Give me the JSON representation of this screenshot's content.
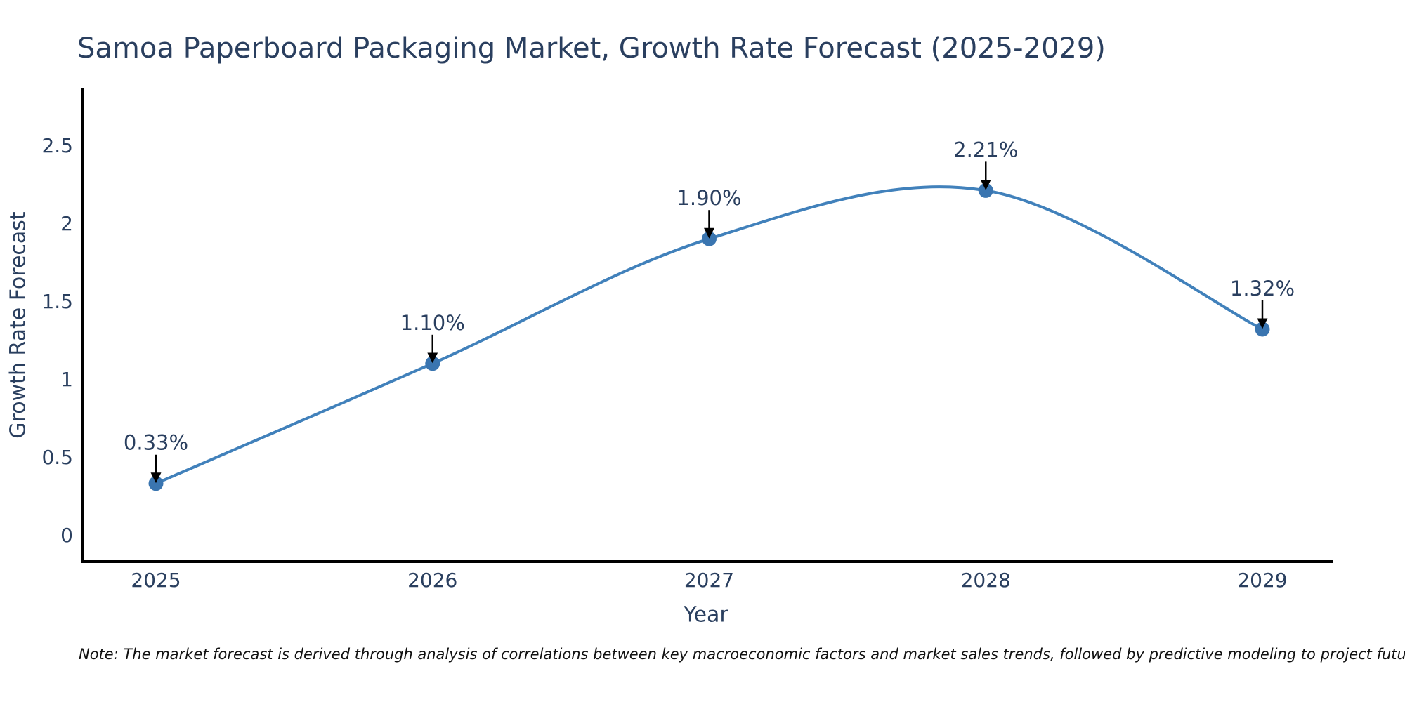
{
  "note": "Note: The market forecast is derived through analysis of correlations between key macroeconomic factors and market sales trends, followed by predictive modeling to project future sales",
  "chart_data": {
    "type": "line",
    "title": "Samoa Paperboard Packaging Market, Growth Rate Forecast (2025-2029)",
    "xlabel": "Year",
    "ylabel": "Growth Rate Forecast",
    "categories": [
      "2025",
      "2026",
      "2027",
      "2028",
      "2029"
    ],
    "series": [
      {
        "name": "Growth Rate Forecast",
        "values": [
          0.33,
          1.1,
          1.9,
          2.21,
          1.32
        ],
        "point_labels": [
          "0.33%",
          "1.10%",
          "1.90%",
          "2.21%",
          "1.32%"
        ]
      }
    ],
    "yticks": [
      0,
      0.5,
      1,
      1.5,
      2,
      2.5
    ],
    "ylim": [
      -0.17,
      2.87
    ],
    "line_shape": "spline",
    "grid": false,
    "legend": "none",
    "annotations": "percentage value labels with black down-arrows above each data point",
    "colors": {
      "line": "#4181bb",
      "marker": "#3a75b0",
      "axis": "#000000",
      "arrow": "#000000",
      "text": "#2a3f5f",
      "note_text": "#111111",
      "background": "#ffffff"
    }
  }
}
